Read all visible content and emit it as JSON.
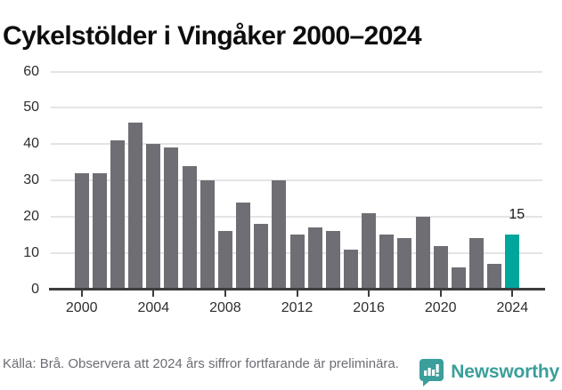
{
  "title": "Cykelstölder i Vingåker 2000–2024",
  "chart_data": {
    "type": "bar",
    "title": "Cykelstölder i Vingåker 2000–2024",
    "categories": [
      2000,
      2001,
      2002,
      2003,
      2004,
      2005,
      2006,
      2007,
      2008,
      2009,
      2010,
      2011,
      2012,
      2013,
      2014,
      2015,
      2016,
      2017,
      2018,
      2019,
      2020,
      2021,
      2022,
      2023,
      2024
    ],
    "values": [
      32,
      32,
      41,
      46,
      40,
      39,
      34,
      30,
      16,
      24,
      18,
      30,
      15,
      17,
      16,
      11,
      21,
      15,
      14,
      20,
      12,
      6,
      14,
      7,
      15
    ],
    "xlabel": "",
    "ylabel": "",
    "ylim": [
      0,
      60
    ],
    "y_ticks": [
      0,
      10,
      20,
      30,
      40,
      50,
      60
    ],
    "x_tick_labels": [
      "2000",
      "2004",
      "2008",
      "2012",
      "2016",
      "2020",
      "2024"
    ],
    "grid": "horizontal",
    "legend": "none",
    "bar_color": "#6f6e74",
    "highlight": {
      "category": 2024,
      "color": "#00a69c",
      "value_label": "15"
    }
  },
  "footer": {
    "source": "Källa: Brå. Observera att 2024 års siffror fortfarande är preliminära."
  },
  "branding": {
    "name": "Newsworthy",
    "color": "#3a9f9a"
  }
}
